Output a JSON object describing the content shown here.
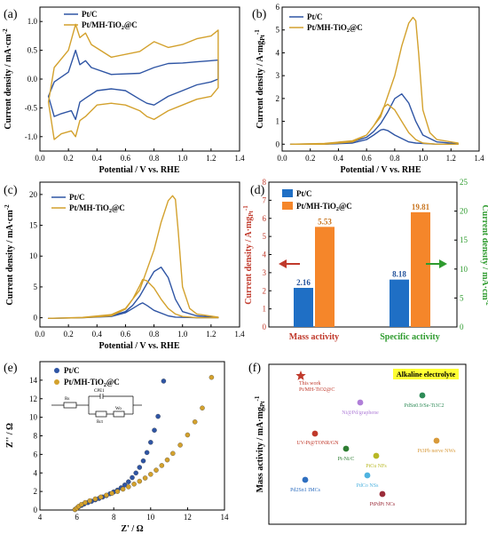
{
  "colors": {
    "ptc": "#2f55a4",
    "mh": "#d3a12d",
    "bar_blue": "#1f6fc5",
    "bar_orange": "#f5862a",
    "red": "#c0392b",
    "green": "#2e9b2e"
  },
  "legend": {
    "ptc": "Pt/C",
    "mh": "Pt/MH-TiO",
    "mh_sub": "2",
    "mh_tail": "@C"
  },
  "chart_data": [
    {
      "panel": "(a)",
      "type": "line",
      "xlabel": "Potential / V vs. RHE",
      "ylabel": "Current density / mA·cm",
      "ylabel_sup": "-2",
      "xlim": [
        0,
        1.4
      ],
      "ylim": [
        -1.25,
        1.25
      ],
      "xticks": [
        "0.0",
        "0.2",
        "0.4",
        "0.6",
        "0.8",
        "1.0",
        "1.2",
        "1.4"
      ],
      "yticks": [
        "-1.0",
        "-0.5",
        "0.0",
        "0.5",
        "1.0"
      ],
      "series": [
        {
          "name": "Pt/C",
          "x": [
            0.06,
            0.1,
            0.2,
            0.25,
            0.28,
            0.32,
            0.36,
            0.5,
            0.7,
            0.8,
            0.9,
            1.0,
            1.1,
            1.2,
            1.25,
            1.25,
            1.2,
            1.1,
            1.0,
            0.9,
            0.8,
            0.75,
            0.7,
            0.6,
            0.5,
            0.4,
            0.32,
            0.28,
            0.25,
            0.22,
            0.15,
            0.1,
            0.06
          ],
          "y": [
            -0.3,
            -0.05,
            0.12,
            0.5,
            0.25,
            0.32,
            0.2,
            0.08,
            0.1,
            0.2,
            0.27,
            0.28,
            0.3,
            0.32,
            0.33,
            0.0,
            -0.05,
            -0.1,
            -0.2,
            -0.3,
            -0.45,
            -0.42,
            -0.35,
            -0.2,
            -0.17,
            -0.2,
            -0.33,
            -0.4,
            -0.7,
            -0.55,
            -0.6,
            -0.65,
            -0.3
          ]
        },
        {
          "name": "Pt/MH-TiO2@C",
          "x": [
            0.06,
            0.1,
            0.2,
            0.25,
            0.28,
            0.32,
            0.36,
            0.5,
            0.7,
            0.8,
            0.9,
            1.0,
            1.1,
            1.2,
            1.25,
            1.25,
            1.2,
            1.1,
            1.0,
            0.9,
            0.8,
            0.75,
            0.7,
            0.6,
            0.5,
            0.4,
            0.32,
            0.28,
            0.25,
            0.22,
            0.15,
            0.1,
            0.06
          ],
          "y": [
            -0.4,
            0.2,
            0.5,
            0.95,
            0.72,
            0.8,
            0.6,
            0.38,
            0.48,
            0.65,
            0.55,
            0.6,
            0.7,
            0.75,
            0.85,
            -0.15,
            -0.3,
            -0.35,
            -0.45,
            -0.55,
            -0.7,
            -0.65,
            -0.55,
            -0.45,
            -0.42,
            -0.45,
            -0.65,
            -0.72,
            -1.0,
            -0.9,
            -0.95,
            -1.05,
            -0.4
          ]
        }
      ]
    },
    {
      "panel": "(b)",
      "type": "line",
      "xlabel": "Potential / V vs. RHE",
      "ylabel": "Current density / A·mg",
      "ylabel_sub": "Pt",
      "ylabel_sup": "-1",
      "xlim": [
        0,
        1.4
      ],
      "ylim": [
        -0.3,
        6
      ],
      "xticks": [
        "0.0",
        "0.2",
        "0.4",
        "0.6",
        "0.8",
        "1.0",
        "1.2",
        "1.4"
      ],
      "yticks": [
        "0",
        "1",
        "2",
        "3",
        "4",
        "5",
        "6"
      ],
      "series": [
        {
          "name": "Pt/C",
          "x": [
            0.06,
            0.3,
            0.5,
            0.6,
            0.65,
            0.7,
            0.75,
            0.8,
            0.85,
            0.9,
            0.95,
            1.0,
            1.1,
            1.25,
            1.25,
            1.1,
            0.95,
            0.9,
            0.8,
            0.75,
            0.72,
            0.7,
            0.65,
            0.6,
            0.5,
            0.3,
            0.06
          ],
          "y": [
            0,
            0.02,
            0.1,
            0.3,
            0.55,
            0.9,
            1.4,
            2.0,
            2.2,
            1.8,
            1.0,
            0.4,
            0.1,
            0.02,
            0,
            0,
            0.05,
            0.1,
            0.4,
            0.6,
            0.65,
            0.62,
            0.4,
            0.2,
            0.05,
            0,
            0
          ]
        },
        {
          "name": "Pt/MH-TiO2@C",
          "x": [
            0.06,
            0.3,
            0.5,
            0.6,
            0.7,
            0.8,
            0.85,
            0.9,
            0.93,
            0.95,
            0.97,
            1.0,
            1.05,
            1.1,
            1.25,
            1.25,
            1.1,
            1.0,
            0.95,
            0.9,
            0.85,
            0.8,
            0.75,
            0.72,
            0.7,
            0.65,
            0.6,
            0.5,
            0.3,
            0.06
          ],
          "y": [
            0,
            0.03,
            0.15,
            0.4,
            1.2,
            3.0,
            4.3,
            5.3,
            5.55,
            5.4,
            4.0,
            1.5,
            0.5,
            0.2,
            0.05,
            0,
            0,
            0.05,
            0.2,
            0.5,
            1.0,
            1.5,
            1.75,
            1.6,
            1.3,
            0.8,
            0.4,
            0.1,
            0,
            0
          ]
        }
      ]
    },
    {
      "panel": "(c)",
      "type": "line",
      "xlabel": "Potential / V vs. RHE",
      "ylabel": "Current density / mA·cm",
      "ylabel_sup": "-2",
      "xlim": [
        0,
        1.4
      ],
      "ylim": [
        -1.5,
        22
      ],
      "xticks": [
        "0.0",
        "0.2",
        "0.4",
        "0.6",
        "0.8",
        "1.0",
        "1.2",
        "1.4"
      ],
      "yticks": [
        "0",
        "5",
        "10",
        "15",
        "20"
      ],
      "series": [
        {
          "name": "Pt/C",
          "x": [
            0.06,
            0.3,
            0.5,
            0.6,
            0.65,
            0.7,
            0.75,
            0.8,
            0.85,
            0.9,
            0.95,
            1.0,
            1.1,
            1.25,
            1.25,
            1.1,
            0.95,
            0.9,
            0.8,
            0.75,
            0.72,
            0.7,
            0.65,
            0.6,
            0.5,
            0.3,
            0.06
          ],
          "y": [
            -0.1,
            0,
            0.3,
            1.0,
            2.0,
            3.5,
            5.5,
            7.5,
            8.2,
            6.5,
            3.0,
            1.0,
            0.3,
            0.05,
            0,
            0,
            0.1,
            0.3,
            1.2,
            2.0,
            2.4,
            2.2,
            1.5,
            0.8,
            0.2,
            0,
            -0.1
          ]
        },
        {
          "name": "Pt/MH-TiO2@C",
          "x": [
            0.06,
            0.3,
            0.5,
            0.6,
            0.7,
            0.8,
            0.85,
            0.9,
            0.93,
            0.95,
            0.97,
            1.0,
            1.05,
            1.1,
            1.25,
            1.25,
            1.1,
            1.0,
            0.95,
            0.9,
            0.85,
            0.8,
            0.75,
            0.72,
            0.7,
            0.65,
            0.6,
            0.5,
            0.3,
            0.06
          ],
          "y": [
            -0.1,
            0.05,
            0.5,
            1.5,
            4.5,
            11.0,
            15.5,
            19.0,
            19.8,
            19.2,
            14.0,
            5.0,
            1.5,
            0.6,
            0.1,
            0,
            0,
            0.2,
            0.6,
            1.5,
            3.0,
            4.8,
            6.0,
            6.2,
            5.2,
            3.0,
            1.4,
            0.3,
            0,
            -0.1
          ]
        }
      ]
    },
    {
      "panel": "(d)",
      "type": "bar",
      "categories": [
        "Mass activity",
        "Specific activity"
      ],
      "ylabel_left": "Current density / A·mg",
      "ylabel_left_sub": "Pt",
      "ylabel_left_sup": "-1",
      "ylabel_right": "Current density / mA·cm",
      "ylabel_right_sup": "-2",
      "ylim_left": [
        0,
        8
      ],
      "ylim_right": [
        0,
        25
      ],
      "yticks_left": [
        "0",
        "1",
        "2",
        "3",
        "4",
        "5",
        "6",
        "7",
        "8"
      ],
      "yticks_right": [
        "0",
        "5",
        "10",
        "15",
        "20",
        "25"
      ],
      "series": [
        {
          "name": "Pt/C",
          "values": [
            2.16,
            8.18
          ],
          "labels": [
            "2.16",
            "8.18"
          ]
        },
        {
          "name": "Pt/MH-TiO2@C",
          "values": [
            5.53,
            19.81
          ],
          "labels": [
            "5.53",
            "19.81"
          ]
        }
      ]
    },
    {
      "panel": "(e)",
      "type": "scatter",
      "xlabel": "Z' / Ω",
      "ylabel": "Z'' / Ω",
      "xlim": [
        4,
        14
      ],
      "ylim": [
        0,
        16
      ],
      "xticks": [
        "4",
        "6",
        "8",
        "10",
        "12",
        "14"
      ],
      "yticks": [
        "0",
        "2",
        "4",
        "6",
        "8",
        "10",
        "12",
        "14"
      ],
      "circuit_labels": [
        "Rs",
        "CPE1",
        "Rct",
        "Wo"
      ],
      "series": [
        {
          "name": "Pt/C",
          "x": [
            5.9,
            6.0,
            6.1,
            6.25,
            6.4,
            6.6,
            6.8,
            7.0,
            7.2,
            7.4,
            7.6,
            7.8,
            8.0,
            8.2,
            8.4,
            8.6,
            8.8,
            9.0,
            9.2,
            9.4,
            9.6,
            9.8,
            10.0,
            10.2,
            10.4,
            10.7
          ],
          "y": [
            0.05,
            0.2,
            0.35,
            0.5,
            0.65,
            0.8,
            0.95,
            1.1,
            1.25,
            1.4,
            1.55,
            1.75,
            1.95,
            2.15,
            2.4,
            2.7,
            3.05,
            3.5,
            4.0,
            4.6,
            5.3,
            6.2,
            7.3,
            8.6,
            10.1,
            13.9
          ]
        },
        {
          "name": "Pt/MH-TiO2@C",
          "x": [
            5.9,
            6.0,
            6.1,
            6.25,
            6.45,
            6.7,
            7.0,
            7.3,
            7.6,
            7.9,
            8.2,
            8.5,
            8.8,
            9.1,
            9.4,
            9.7,
            10.0,
            10.3,
            10.6,
            10.9,
            11.2,
            11.6,
            12.0,
            12.4,
            12.8,
            13.3
          ],
          "y": [
            0.05,
            0.2,
            0.4,
            0.6,
            0.8,
            1.0,
            1.2,
            1.4,
            1.6,
            1.8,
            2.0,
            2.25,
            2.5,
            2.8,
            3.1,
            3.45,
            3.85,
            4.3,
            4.8,
            5.4,
            6.1,
            7.0,
            8.1,
            9.5,
            11.0,
            14.3
          ]
        }
      ]
    },
    {
      "panel": "(f)",
      "type": "scatter",
      "ylabel": "Mass activity / mA·mg",
      "ylabel_sub": "Pt",
      "ylabel_sup": "-1",
      "badge": "Alkaline electrolyte",
      "points": [
        {
          "label": "This work",
          "label2": "Pt/MH-TiO2@C",
          "color": "#c0392b",
          "marker": "star"
        },
        {
          "label": "Ni@Pd/graphene",
          "color": "#b07fd8",
          "marker": "circle"
        },
        {
          "label": "PdSn0.9/Se-Ti3C2",
          "color": "#2e8b57",
          "marker": "circle"
        },
        {
          "label": "UV-Pt@TONR/GN",
          "color": "#c0392b",
          "marker": "circle"
        },
        {
          "label": "Pt-Ni/C",
          "color": "#2e7d32",
          "marker": "circle"
        },
        {
          "label": "PtCu NFs",
          "color": "#b8b825",
          "marker": "circle"
        },
        {
          "label": "Pt3Pb nerve NWs",
          "color": "#d89a3a",
          "marker": "circle"
        },
        {
          "label": "Pd2Sn1 IMCs",
          "color": "#2f6fc0",
          "marker": "circle"
        },
        {
          "label": "PdCo NSs",
          "color": "#4fb3e0",
          "marker": "circle"
        },
        {
          "label": "PtPdPt NCs",
          "color": "#9b2d3a",
          "marker": "circle"
        }
      ]
    }
  ]
}
